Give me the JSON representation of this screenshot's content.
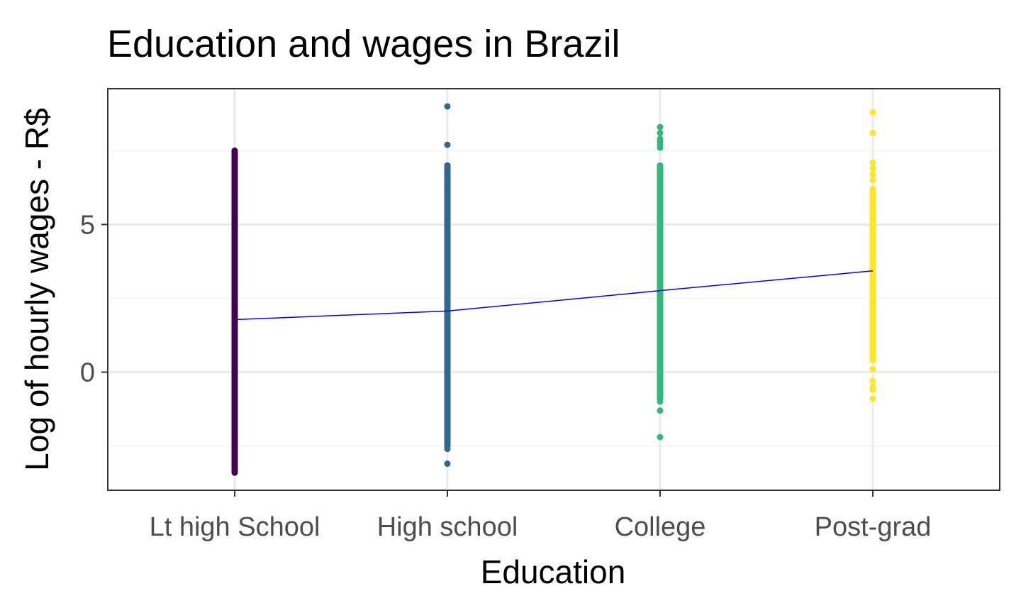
{
  "chart_data": {
    "type": "scatter",
    "title": "Education and wages in Brazil",
    "xlabel": "Education",
    "ylabel": "Log of hourly wages - R$",
    "categories": [
      "Lt high School",
      "High school",
      "College",
      "Post-grad"
    ],
    "y_ticks": [
      0,
      5
    ],
    "ylim": [
      -4.0,
      9.6
    ],
    "grid": true,
    "legend": "none",
    "series": [
      {
        "category": "Lt high School",
        "color": "#440154",
        "range": [
          -3.4,
          7.5
        ],
        "points": [
          7.5,
          6.9,
          6.8,
          6.6,
          6.5,
          6.3,
          6.2,
          -2.2,
          -2.4,
          -2.6,
          -2.8,
          -3.0,
          -3.4
        ],
        "mean": 1.78
      },
      {
        "category": "High school",
        "color": "#31688E",
        "range": [
          -2.5,
          7.0
        ],
        "points": [
          9.0,
          7.7,
          7.0,
          6.8,
          6.5,
          6.3,
          6.0,
          5.8,
          5.5,
          -2.1,
          -2.4,
          -2.6,
          -3.1
        ],
        "mean": 2.07
      },
      {
        "category": "College",
        "color": "#35B779",
        "range": [
          -0.9,
          7.0
        ],
        "points": [
          8.3,
          8.1,
          7.9,
          7.8,
          7.7,
          7.6,
          -1.0,
          -1.3,
          -2.2
        ],
        "mean": 2.76
      },
      {
        "category": "Post-grad",
        "color": "#FDE725",
        "range": [
          0.4,
          6.2
        ],
        "points": [
          8.8,
          8.1,
          7.1,
          6.9,
          6.7,
          6.5,
          0.1,
          -0.3,
          -0.5,
          -0.6,
          -0.9
        ],
        "mean": 3.43
      }
    ],
    "trend_line": {
      "color": "#0000ff",
      "values": [
        1.78,
        2.07,
        2.76,
        3.43
      ]
    }
  }
}
